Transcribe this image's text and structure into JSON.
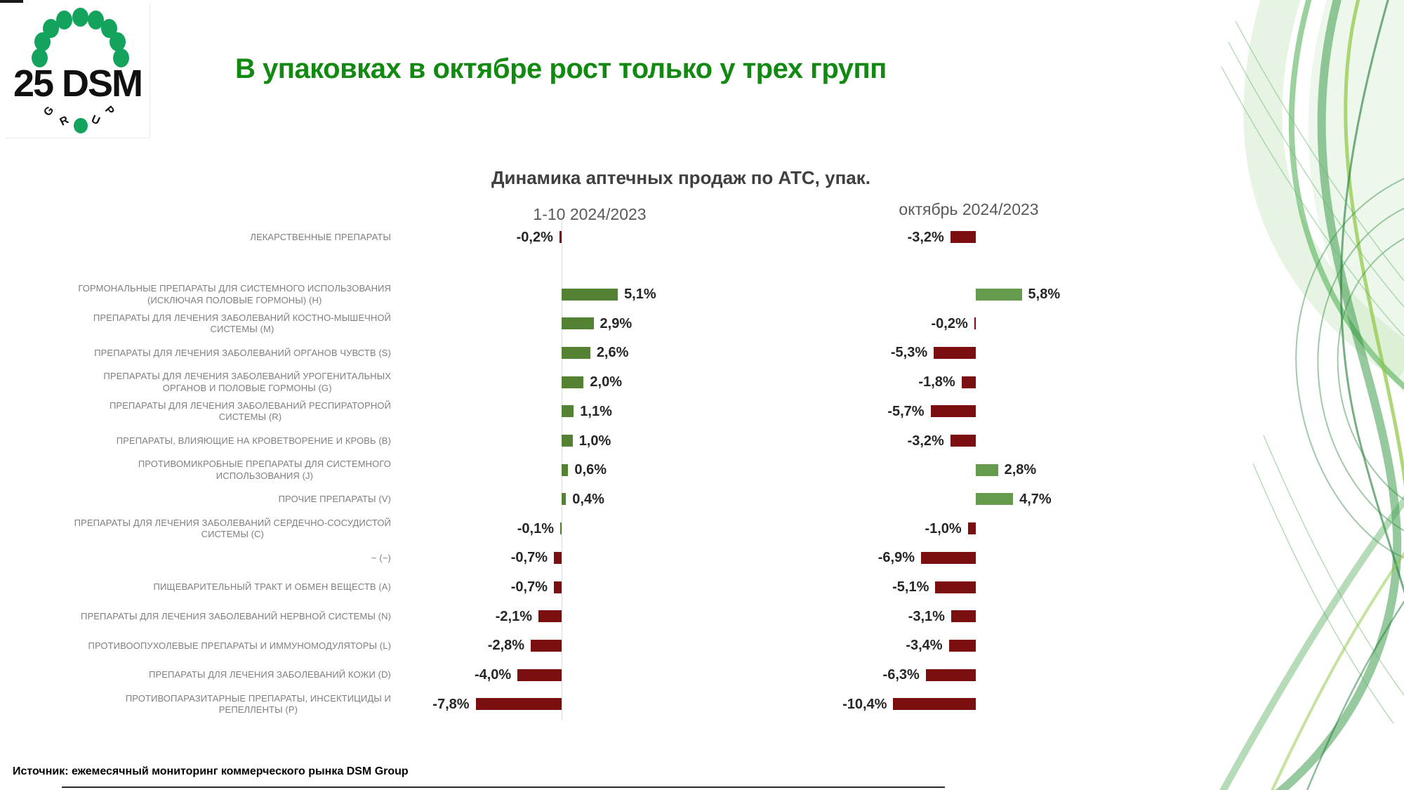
{
  "slide": {
    "title": "В упаковках в октябре рост только у трех групп",
    "source": "Источник: ежемесячный мониторинг коммерческого рынка DSM Group"
  },
  "logo": {
    "number_name": "25 DSM",
    "group": "GROUP"
  },
  "chart_data": {
    "type": "bar",
    "orientation": "horizontal",
    "title": "Динамика аптечных продаж по АТС, упак.",
    "value_unit": "%",
    "legend_position": "column-headers",
    "grid": false,
    "categories": [
      "ЛЕКАРСТВЕННЫЕ ПРЕПАРАТЫ",
      "ГОРМОНАЛЬНЫЕ ПРЕПАРАТЫ ДЛЯ СИСТЕМНОГО ИСПОЛЬЗОВАНИЯ\n(ИСКЛЮЧАЯ ПОЛОВЫЕ ГОРМОНЫ) (H)",
      "ПРЕПАРАТЫ ДЛЯ ЛЕЧЕНИЯ ЗАБОЛЕВАНИЙ КОСТНО-МЫШЕЧНОЙ\nСИСТЕМЫ (M)",
      "ПРЕПАРАТЫ ДЛЯ ЛЕЧЕНИЯ ЗАБОЛЕВАНИЙ ОРГАНОВ ЧУВСТВ (S)",
      "ПРЕПАРАТЫ ДЛЯ ЛЕЧЕНИЯ ЗАБОЛЕВАНИЙ УРОГЕНИТАЛЬНЫХ\nОРГАНОВ И ПОЛОВЫЕ ГОРМОНЫ (G)",
      "ПРЕПАРАТЫ ДЛЯ ЛЕЧЕНИЯ ЗАБОЛЕВАНИЙ РЕСПИРАТОРНОЙ\nСИСТЕМЫ (R)",
      "ПРЕПАРАТЫ, ВЛИЯЮЩИЕ НА КРОВЕТВОРЕНИЕ И КРОВЬ (B)",
      "ПРОТИВОМИКРОБНЫЕ ПРЕПАРАТЫ ДЛЯ СИСТЕМНОГО\nИСПОЛЬЗОВАНИЯ (J)",
      "ПРОЧИЕ ПРЕПАРАТЫ (V)",
      "ПРЕПАРАТЫ ДЛЯ ЛЕЧЕНИЯ ЗАБОЛЕВАНИЙ СЕРДЕЧНО-СОСУДИСТОЙ\nСИСТЕМЫ (C)",
      "~ (~)",
      "ПИЩЕВАРИТЕЛЬНЫЙ ТРАКТ И ОБМЕН ВЕЩЕСТВ (A)",
      "ПРЕПАРАТЫ ДЛЯ ЛЕЧЕНИЯ ЗАБОЛЕВАНИЙ НЕРВНОЙ СИСТЕМЫ (N)",
      "ПРОТИВООПУХОЛЕВЫЕ ПРЕПАРАТЫ И ИММУНОМОДУЛЯТОРЫ (L)",
      "ПРЕПАРАТЫ ДЛЯ ЛЕЧЕНИЯ ЗАБОЛЕВАНИЙ КОЖИ (D)",
      "ПРОТИВОПАРАЗИТАРНЫЕ ПРЕПАРАТЫ, ИНСЕКТИЦИДЫ И\nРЕПЕЛЛЕНТЫ (P)"
    ],
    "series": [
      {
        "name": "1-10 2024/2023",
        "values": [
          -0.2,
          5.1,
          2.9,
          2.6,
          2.0,
          1.1,
          1.0,
          0.6,
          0.4,
          -0.1,
          -0.7,
          -0.7,
          -2.1,
          -2.8,
          -4.0,
          -7.8
        ],
        "labels": [
          "-0,2%",
          "5,1%",
          "2,9%",
          "2,6%",
          "2,0%",
          "1,1%",
          "1,0%",
          "0,6%",
          "0,4%",
          "-0,1%",
          "-0,7%",
          "-0,7%",
          "-2,1%",
          "-2,8%",
          "-4,0%",
          "-7,8%"
        ],
        "bar_colors": [
          "#7b0f0f",
          "#548235",
          "#548235",
          "#548235",
          "#548235",
          "#548235",
          "#548235",
          "#548235",
          "#548235",
          "#548235",
          "#7b0f0f",
          "#7b0f0f",
          "#7b0f0f",
          "#7b0f0f",
          "#7b0f0f",
          "#7b0f0f"
        ]
      },
      {
        "name": "октябрь 2024/2023",
        "values": [
          -3.2,
          5.8,
          -0.2,
          -5.3,
          -1.8,
          -5.7,
          -3.2,
          2.8,
          4.7,
          -1.0,
          -6.9,
          -5.1,
          -3.1,
          -3.4,
          -6.3,
          -10.4
        ],
        "labels": [
          "-3,2%",
          "5,8%",
          "-0,2%",
          "-5,3%",
          "-1,8%",
          "-5,7%",
          "-3,2%",
          "2,8%",
          "4,7%",
          "-1,0%",
          "-6,9%",
          "-5,1%",
          "-3,1%",
          "-3,4%",
          "-6,3%",
          "-10,4%"
        ],
        "bar_colors": [
          "#7b0f0f",
          "#669a4c",
          "#7b0f0f",
          "#7b0f0f",
          "#7b0f0f",
          "#7b0f0f",
          "#7b0f0f",
          "#669a4c",
          "#669a4c",
          "#7b0f0f",
          "#7b0f0f",
          "#7b0f0f",
          "#7b0f0f",
          "#7b0f0f",
          "#7b0f0f",
          "#7b0f0f"
        ]
      }
    ],
    "colors": {
      "positive_green": "#548235",
      "negative_dark_red": "#7b0f0f",
      "title_green": "#128a12",
      "label_gray": "#7f7f7f"
    }
  }
}
